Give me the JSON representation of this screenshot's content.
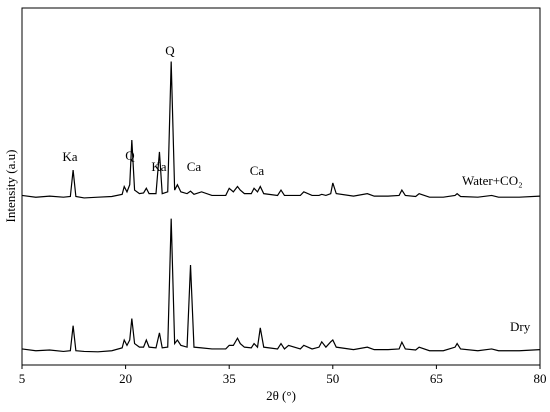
{
  "chart_data": {
    "type": "line",
    "xlabel": "2θ (°)",
    "ylabel": "Intensity (a.u)",
    "xlim": [
      5,
      80
    ],
    "xticks": [
      5,
      20,
      35,
      50,
      65,
      80
    ],
    "ylim": [
      0,
      100
    ],
    "annotations": [
      "Ka",
      "Q",
      "Ka",
      "Q",
      "Ca",
      "Ca"
    ],
    "x": [
      5,
      7,
      9,
      11,
      12,
      12.4,
      12.8,
      14,
      16,
      18,
      19.5,
      19.8,
      20.2,
      20.6,
      20.9,
      21.3,
      22,
      22.6,
      23,
      23.4,
      24.4,
      24.9,
      25.3,
      26.1,
      26.6,
      27.1,
      27.5,
      28,
      28.9,
      29.4,
      29.9,
      31,
      32.5,
      34.5,
      35,
      35.6,
      36.2,
      36.6,
      37.2,
      38.2,
      38.6,
      39.1,
      39.5,
      40,
      42,
      42.5,
      43,
      43.6,
      45.3,
      45.8,
      47,
      48,
      48.4,
      49,
      49.7,
      50,
      50.5,
      53,
      55,
      56,
      58,
      59.6,
      60,
      60.5,
      62,
      62.5,
      64,
      66,
      67.7,
      68,
      68.5,
      71,
      73,
      74,
      77,
      80
    ],
    "series": [
      {
        "name": "Water+CO₂",
        "color": "#000000",
        "values": [
          47.5,
          47,
          47.3,
          47,
          47.2,
          54.6,
          47.2,
          46.8,
          47,
          47.2,
          47.8,
          50,
          48.5,
          50.5,
          63,
          49,
          48,
          48.2,
          49.5,
          48,
          48,
          59.7,
          48,
          48.5,
          85,
          49,
          50.5,
          48.5,
          48,
          48.7,
          47.8,
          48.5,
          47.5,
          47.5,
          49.5,
          48.5,
          50,
          49,
          48,
          48,
          49.5,
          48.5,
          50,
          48,
          47.5,
          49,
          47.5,
          47.5,
          47.5,
          48.5,
          47.5,
          47.5,
          47.8,
          47.5,
          48,
          51,
          48,
          47.3,
          48,
          47.3,
          47.3,
          47.5,
          49,
          47.5,
          47.2,
          48,
          47,
          47,
          47.5,
          48,
          47.2,
          47,
          47.5,
          47,
          47,
          47.3
        ]
      },
      {
        "name": "Dry",
        "color": "#000000",
        "values": [
          4.5,
          4,
          4.2,
          3.8,
          4,
          11,
          4,
          3.8,
          3.7,
          4,
          4.8,
          7,
          5.5,
          7,
          13,
          6,
          5,
          5,
          7,
          5,
          4.8,
          9,
          4.8,
          5,
          41,
          6,
          7,
          5.5,
          5,
          28,
          5,
          4.8,
          4.5,
          4.5,
          5.5,
          5.5,
          7.5,
          6,
          5,
          4.8,
          6,
          5,
          10.4,
          5,
          4.5,
          6,
          4.5,
          5.5,
          4.5,
          5.5,
          4.5,
          5,
          6.5,
          5,
          6.5,
          7,
          5,
          4.3,
          5,
          4.3,
          4.3,
          4.5,
          6.4,
          4.5,
          4.2,
          5,
          4,
          4,
          5,
          6,
          4.5,
          4,
          4.5,
          4,
          4,
          4.3
        ]
      }
    ]
  }
}
